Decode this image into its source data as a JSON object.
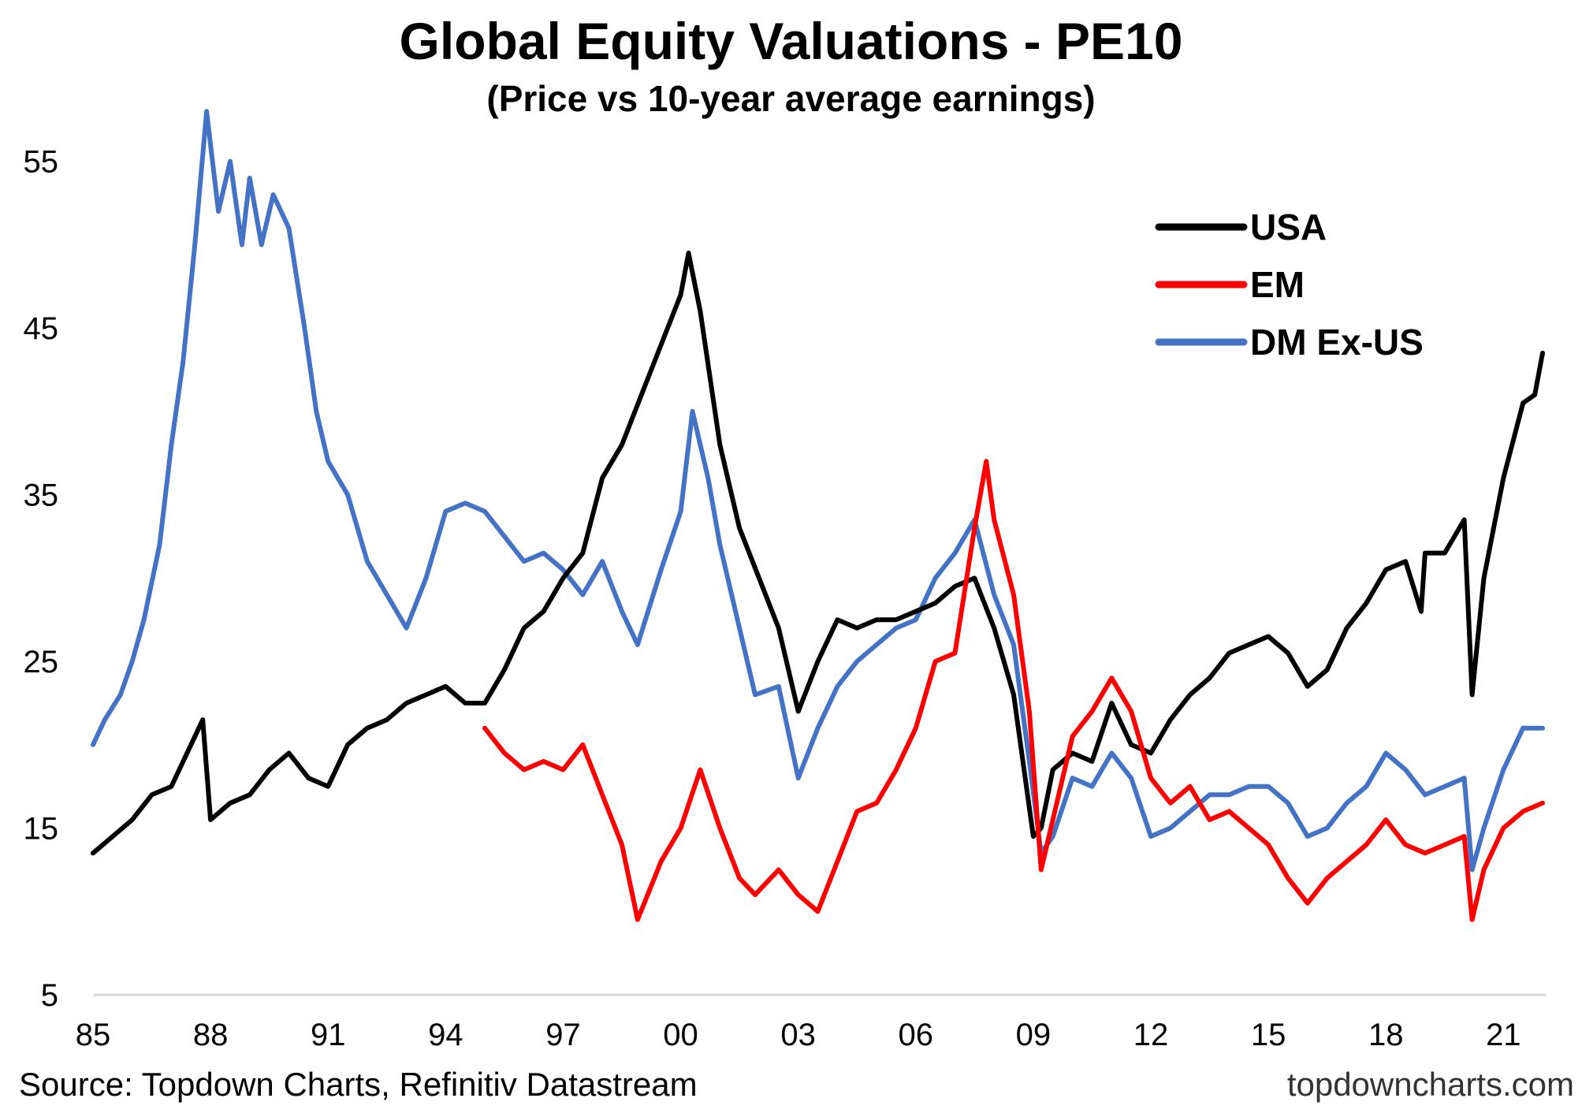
{
  "chart_data": {
    "type": "line",
    "title": "Global Equity Valuations - PE10",
    "subtitle": "(Price vs 10-year average earnings)",
    "source": "Source: Topdown Charts, Refinitiv Datastream",
    "website": "topdowncharts.com",
    "xlim": [
      1985,
      2022.1
    ],
    "ylim": [
      5,
      60
    ],
    "x_ticks": [
      1985,
      1988,
      1991,
      1994,
      1997,
      2000,
      2003,
      2006,
      2009,
      2012,
      2015,
      2018,
      2021
    ],
    "x_tick_labels": [
      "85",
      "88",
      "91",
      "94",
      "97",
      "00",
      "03",
      "06",
      "09",
      "12",
      "15",
      "18",
      "21"
    ],
    "y_ticks": [
      5,
      15,
      25,
      35,
      45,
      55
    ],
    "y_tick_labels": [
      "5",
      "15",
      "25",
      "35",
      "45",
      "55"
    ],
    "grid": false,
    "legend_position": "top-right",
    "series": [
      {
        "name": "USA",
        "color": "#000000",
        "x": [
          1985.0,
          1985.5,
          1986.0,
          1986.5,
          1987.0,
          1987.5,
          1987.8,
          1988.0,
          1988.5,
          1989.0,
          1989.5,
          1990.0,
          1990.5,
          1991.0,
          1991.5,
          1992.0,
          1992.5,
          1993.0,
          1993.5,
          1994.0,
          1994.5,
          1995.0,
          1995.5,
          1996.0,
          1996.5,
          1997.0,
          1997.5,
          1998.0,
          1998.5,
          1999.0,
          1999.5,
          2000.0,
          2000.2,
          2000.5,
          2001.0,
          2001.5,
          2002.0,
          2002.5,
          2003.0,
          2003.5,
          2004.0,
          2004.5,
          2005.0,
          2005.5,
          2006.0,
          2006.5,
          2007.0,
          2007.5,
          2008.0,
          2008.5,
          2009.0,
          2009.2,
          2009.5,
          2010.0,
          2010.5,
          2011.0,
          2011.5,
          2012.0,
          2012.5,
          2013.0,
          2013.5,
          2014.0,
          2014.5,
          2015.0,
          2015.5,
          2016.0,
          2016.5,
          2017.0,
          2017.5,
          2018.0,
          2018.5,
          2018.9,
          2019.0,
          2019.5,
          2020.0,
          2020.2,
          2020.5,
          2021.0,
          2021.5,
          2021.8,
          2022.0
        ],
        "values": [
          13.5,
          14.5,
          15.5,
          17.0,
          17.5,
          20.0,
          21.5,
          15.5,
          16.5,
          17.0,
          18.5,
          19.5,
          18.0,
          17.5,
          20.0,
          21.0,
          21.5,
          22.5,
          23.0,
          23.5,
          22.5,
          22.5,
          24.5,
          27.0,
          28.0,
          30.0,
          31.5,
          36.0,
          38.0,
          41.0,
          44.0,
          47.0,
          49.5,
          46.0,
          38.0,
          33.0,
          30.0,
          27.0,
          22.0,
          25.0,
          27.5,
          27.0,
          27.5,
          27.5,
          28.0,
          28.5,
          29.5,
          30.0,
          27.0,
          23.0,
          14.5,
          15.0,
          18.5,
          19.5,
          19.0,
          22.5,
          20.0,
          19.5,
          21.5,
          23.0,
          24.0,
          25.5,
          26.0,
          26.5,
          25.5,
          23.5,
          24.5,
          27.0,
          28.5,
          30.5,
          31.0,
          28.0,
          31.5,
          31.5,
          33.5,
          23.0,
          30.0,
          36.0,
          40.5,
          41.0,
          43.5
        ]
      },
      {
        "name": "EM",
        "color": "#ff0000",
        "x": [
          1995.0,
          1995.5,
          1996.0,
          1996.5,
          1997.0,
          1997.5,
          1998.0,
          1998.5,
          1998.9,
          1999.5,
          2000.0,
          2000.5,
          2001.0,
          2001.5,
          2001.9,
          2002.5,
          2003.0,
          2003.5,
          2004.0,
          2004.5,
          2005.0,
          2005.5,
          2006.0,
          2006.5,
          2007.0,
          2007.5,
          2007.8,
          2008.0,
          2008.5,
          2008.9,
          2009.2,
          2009.5,
          2010.0,
          2010.5,
          2011.0,
          2011.5,
          2012.0,
          2012.5,
          2013.0,
          2013.5,
          2014.0,
          2014.5,
          2015.0,
          2015.5,
          2016.0,
          2016.5,
          2017.0,
          2017.5,
          2018.0,
          2018.5,
          2019.0,
          2019.5,
          2020.0,
          2020.2,
          2020.5,
          2021.0,
          2021.5,
          2022.0
        ],
        "values": [
          21.0,
          19.5,
          18.5,
          19.0,
          18.5,
          20.0,
          17.0,
          14.0,
          9.5,
          13.0,
          15.0,
          18.5,
          15.0,
          12.0,
          11.0,
          12.5,
          11.0,
          10.0,
          13.0,
          16.0,
          16.5,
          18.5,
          21.0,
          25.0,
          25.5,
          33.0,
          37.0,
          33.5,
          29.0,
          22.0,
          12.5,
          15.5,
          20.5,
          22.0,
          24.0,
          22.0,
          18.0,
          16.5,
          17.5,
          15.5,
          16.0,
          15.0,
          14.0,
          12.0,
          10.5,
          12.0,
          13.0,
          14.0,
          15.5,
          14.0,
          13.5,
          14.0,
          14.5,
          9.5,
          12.5,
          15.0,
          16.0,
          16.5
        ]
      },
      {
        "name": "DM Ex-US",
        "color": "#4472c4",
        "x": [
          1985.0,
          1985.3,
          1985.7,
          1986.0,
          1986.3,
          1986.7,
          1987.0,
          1987.3,
          1987.6,
          1987.9,
          1988.2,
          1988.5,
          1988.8,
          1989.0,
          1989.3,
          1989.6,
          1990.0,
          1990.4,
          1990.7,
          1991.0,
          1991.5,
          1992.0,
          1992.5,
          1993.0,
          1993.5,
          1994.0,
          1994.5,
          1995.0,
          1995.5,
          1996.0,
          1996.5,
          1997.0,
          1997.5,
          1998.0,
          1998.5,
          1998.9,
          1999.5,
          2000.0,
          2000.3,
          2000.7,
          2001.0,
          2001.5,
          2001.9,
          2002.5,
          2003.0,
          2003.5,
          2004.0,
          2004.5,
          2005.0,
          2005.5,
          2006.0,
          2006.5,
          2007.0,
          2007.5,
          2008.0,
          2008.5,
          2008.9,
          2009.2,
          2009.5,
          2010.0,
          2010.5,
          2011.0,
          2011.5,
          2012.0,
          2012.5,
          2013.0,
          2013.5,
          2014.0,
          2014.5,
          2015.0,
          2015.5,
          2016.0,
          2016.5,
          2017.0,
          2017.5,
          2018.0,
          2018.5,
          2019.0,
          2019.5,
          2020.0,
          2020.2,
          2020.5,
          2021.0,
          2021.5,
          2022.0
        ],
        "values": [
          20.0,
          21.5,
          23.0,
          25.0,
          27.5,
          32.0,
          38.0,
          43.0,
          50.0,
          58.0,
          52.0,
          55.0,
          50.0,
          54.0,
          50.0,
          53.0,
          51.0,
          45.0,
          40.0,
          37.0,
          35.0,
          31.0,
          29.0,
          27.0,
          30.0,
          34.0,
          34.5,
          34.0,
          32.5,
          31.0,
          31.5,
          30.5,
          29.0,
          31.0,
          28.0,
          26.0,
          30.5,
          34.0,
          40.0,
          36.0,
          32.0,
          27.0,
          23.0,
          23.5,
          18.0,
          21.0,
          23.5,
          25.0,
          26.0,
          27.0,
          27.5,
          30.0,
          31.5,
          33.5,
          29.0,
          26.0,
          19.0,
          13.5,
          14.5,
          18.0,
          17.5,
          19.5,
          18.0,
          14.5,
          15.0,
          16.0,
          17.0,
          17.0,
          17.5,
          17.5,
          16.5,
          14.5,
          15.0,
          16.5,
          17.5,
          19.5,
          18.5,
          17.0,
          17.5,
          18.0,
          12.5,
          15.0,
          18.5,
          21.0,
          21.0
        ]
      }
    ]
  }
}
